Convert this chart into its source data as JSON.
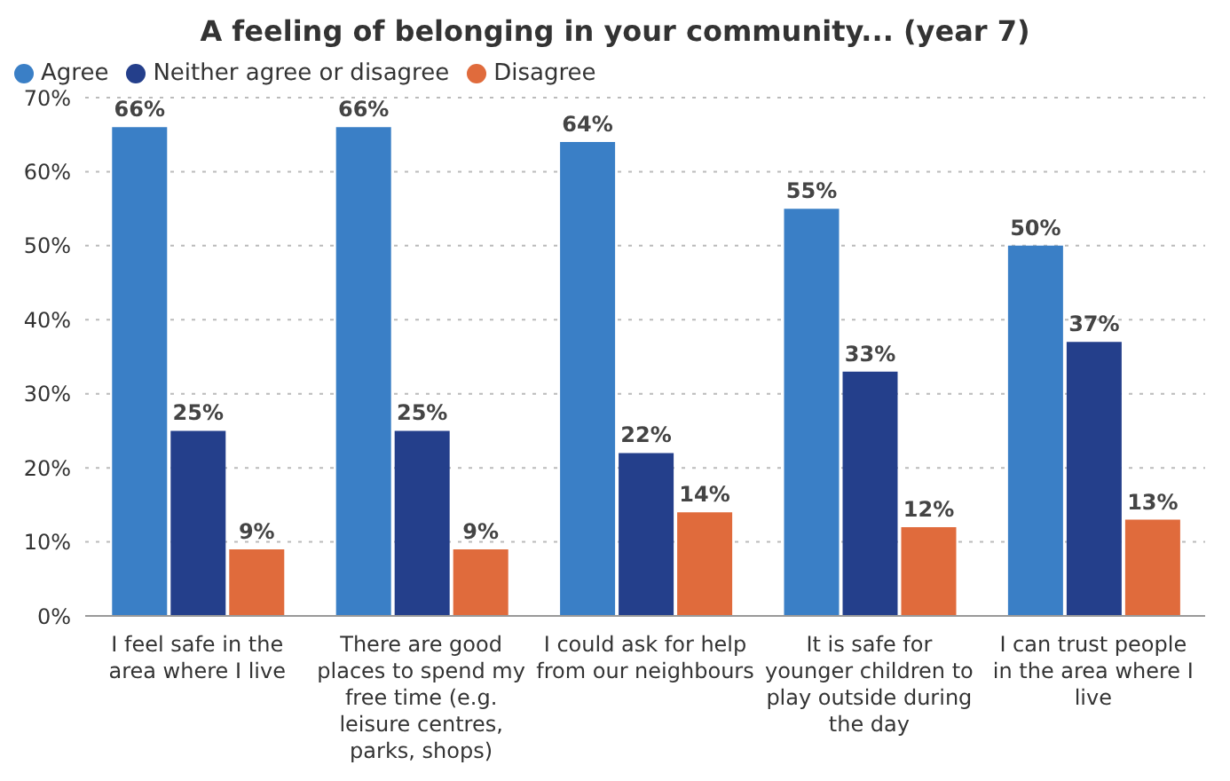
{
  "chart_data": {
    "type": "bar",
    "title": "A feeling of belonging in your community... (year 7)",
    "categories": [
      "I feel safe in the area where I live",
      "There are good places to spend my free time (e.g. leisure centres, parks, shops)",
      "I could ask for help from our neighbours",
      "It is safe for younger children to play outside during the day",
      "I can trust people in the area where I live"
    ],
    "series": [
      {
        "name": "Agree",
        "color": "#3a7fc6",
        "values": [
          66,
          66,
          64,
          55,
          50
        ],
        "value_labels": [
          "66%",
          "66%",
          "64%",
          "55%",
          "50%"
        ]
      },
      {
        "name": "Neither agree or disagree",
        "color": "#243f8b",
        "values": [
          25,
          25,
          22,
          33,
          37
        ],
        "value_labels": [
          "25%",
          "25%",
          "22%",
          "33%",
          "37%"
        ]
      },
      {
        "name": "Disagree",
        "color": "#e06b3c",
        "values": [
          9,
          9,
          14,
          12,
          13
        ],
        "value_labels": [
          "9%",
          "9%",
          "14%",
          "12%",
          "13%"
        ]
      }
    ],
    "ylim": [
      0,
      70
    ],
    "yticks": [
      {
        "value": 0,
        "label": "0%"
      },
      {
        "value": 10,
        "label": "10%"
      },
      {
        "value": 20,
        "label": "20%"
      },
      {
        "value": 30,
        "label": "30%"
      },
      {
        "value": 40,
        "label": "40%"
      },
      {
        "value": 50,
        "label": "50%"
      },
      {
        "value": 60,
        "label": "60%"
      },
      {
        "value": 70,
        "label": "70%"
      }
    ],
    "grid": "y",
    "legend": "top left"
  }
}
